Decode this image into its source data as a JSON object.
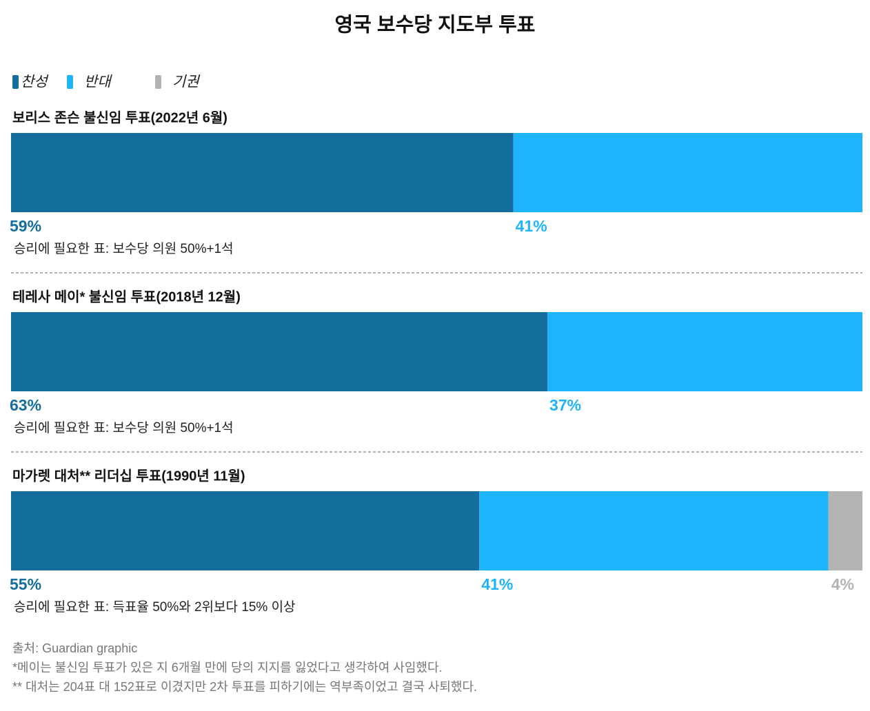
{
  "chart_data": {
    "type": "stacked_bar",
    "title": "영국 보수당 지도부 투표",
    "categories": [
      "보리스 존슨 불신임 투표(2022년 6월)",
      "테레사 메이* 불신임 투표(2018년 12월)",
      "마가렛 대처** 리더십 투표(1990년 11월)"
    ],
    "subtitles": [
      "승리에 필요한 표: 보수당 의원 50%+1석",
      "승리에 필요한 표: 보수당 의원 50%+1석",
      "승리에 필요한 표: 득표율 50%와 2위보다 15% 이상"
    ],
    "series": [
      {
        "name": "찬성",
        "color": "#136e9e",
        "values": [
          59,
          63,
          55
        ],
        "value_labels": [
          "59%",
          "63%",
          "55%"
        ]
      },
      {
        "name": "반대",
        "color": "#1fb3fb",
        "values": [
          41,
          37,
          41
        ],
        "value_labels": [
          "41%",
          "37%",
          "41%"
        ]
      },
      {
        "name": "기권",
        "color": "#b3b3b3",
        "values": [
          null,
          null,
          4
        ],
        "value_labels": [
          null,
          null,
          "4%"
        ]
      }
    ],
    "xlim": [
      0,
      100
    ]
  },
  "footer": {
    "source": "출처: Guardian graphic",
    "notes": [
      "*메이는 불신임 투표가 있은 지 6개월 만에 당의 지지를 잃었다고 생각하여 사임했다.",
      "** 대처는 204표 대 152표로 이겼지만 2차 투표를 피하기에는 역부족이었고 결국 사퇴했다."
    ]
  }
}
